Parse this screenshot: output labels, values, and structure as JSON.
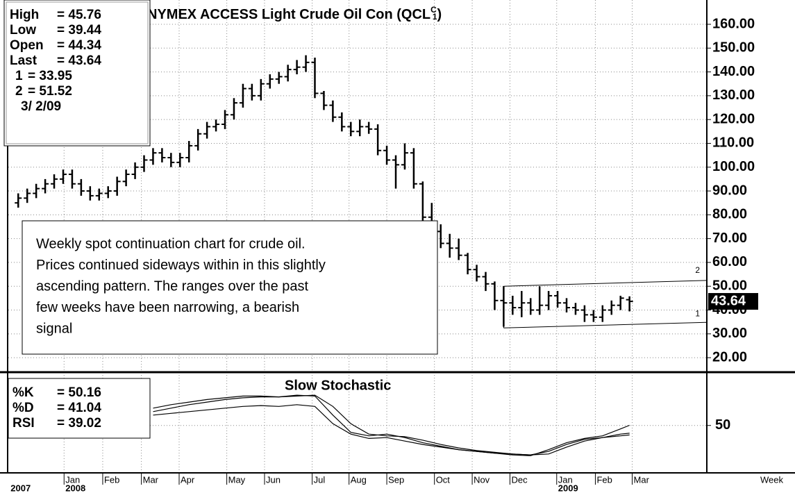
{
  "chart_data": [
    {
      "type": "ohlc",
      "title_parts": [
        "NYMEX ACCESS Light Crude Oil Con (QCL",
        "C",
        "1",
        ")"
      ],
      "readout": [
        {
          "label": "High",
          "value": "= 45.76"
        },
        {
          "label": "Low",
          "value": "= 39.44"
        },
        {
          "label": "Open",
          "value": "= 44.34"
        },
        {
          "label": "Last",
          "value": "= 43.64"
        },
        {
          "label": "1",
          "value": "= 33.95"
        },
        {
          "label": "2",
          "value": "= 51.52"
        }
      ],
      "date": "3/ 2/09",
      "annotation": [
        "Weekly spot continuation chart for crude oil.",
        "Prices continued sideways within in this slightly",
        "ascending pattern. The ranges over the past",
        "few weeks have been narrowing, a bearish",
        "signal"
      ],
      "open": [
        85,
        87,
        89,
        91,
        93,
        95,
        97,
        93,
        90,
        88,
        89,
        90,
        94,
        97,
        100,
        103,
        106,
        104,
        102,
        104,
        109,
        114,
        117,
        118,
        122,
        127,
        133,
        130,
        135,
        137,
        138,
        141,
        142,
        144,
        131,
        126,
        121,
        117,
        115,
        117,
        116,
        107,
        103,
        101,
        106,
        93,
        79,
        73,
        68,
        66,
        63,
        57,
        54,
        51,
        44,
        43,
        41,
        43,
        40,
        42,
        46,
        43,
        41,
        40,
        38,
        37,
        40,
        42,
        44.34
      ],
      "high": [
        89,
        91,
        93,
        95,
        97,
        99,
        99,
        95,
        92,
        91,
        92,
        96,
        99,
        102,
        105,
        108,
        108,
        106,
        106,
        111,
        116,
        119,
        120,
        124,
        129,
        135,
        135,
        137,
        139,
        140,
        143,
        145,
        147,
        146,
        132,
        128,
        123,
        119,
        120,
        119,
        118,
        109,
        105,
        110,
        108,
        94,
        85,
        76,
        72,
        70,
        64,
        59,
        56,
        52,
        50,
        46,
        48,
        45,
        50,
        48,
        48,
        45,
        43,
        42,
        40,
        42,
        44,
        46,
        45.76
      ],
      "low": [
        83,
        85,
        87,
        89,
        91,
        93,
        91,
        88,
        86,
        86,
        87,
        88,
        92,
        95,
        98,
        101,
        102,
        100,
        100,
        102,
        107,
        112,
        115,
        116,
        120,
        125,
        128,
        128,
        133,
        135,
        136,
        139,
        140,
        129,
        124,
        119,
        115,
        113,
        113,
        114,
        105,
        101,
        91,
        99,
        91,
        77,
        71,
        66,
        62,
        61,
        55,
        52,
        48,
        40,
        33,
        38,
        37,
        38,
        38,
        40,
        41,
        39,
        38,
        35,
        35,
        35,
        38,
        40,
        39.44
      ],
      "close": [
        87,
        89,
        91,
        93,
        95,
        97,
        93,
        90,
        88,
        89,
        90,
        94,
        97,
        100,
        103,
        106,
        104,
        102,
        104,
        109,
        114,
        117,
        118,
        122,
        127,
        133,
        130,
        135,
        137,
        138,
        141,
        142,
        144,
        131,
        126,
        121,
        117,
        115,
        117,
        116,
        107,
        103,
        101,
        106,
        93,
        79,
        73,
        68,
        66,
        63,
        57,
        54,
        51,
        44,
        43,
        41,
        43,
        40,
        42,
        46,
        43,
        41,
        40,
        38,
        37,
        40,
        42,
        45,
        43.64
      ],
      "color": "#000000",
      "trendlines": [
        {
          "name": "1",
          "x": [
            54,
            68
          ],
          "values": [
            32.5,
            33.95
          ]
        },
        {
          "name": "2",
          "x": [
            54,
            68
          ],
          "values": [
            50,
            51.52
          ]
        }
      ],
      "xlim": [
        -1.1,
        76.6
      ],
      "ylim": [
        14.2,
        170.2
      ],
      "yticks": [
        {
          "value": 20,
          "label": "20.00"
        },
        {
          "value": 30,
          "label": "30.00"
        },
        {
          "value": 40,
          "label": "40.00"
        },
        {
          "value": 50,
          "label": "50.00"
        },
        {
          "value": 60,
          "label": "60.00"
        },
        {
          "value": 70,
          "label": "70.00"
        },
        {
          "value": 80,
          "label": "80.00"
        },
        {
          "value": 90,
          "label": "90.00"
        },
        {
          "value": 100,
          "label": "100.00"
        },
        {
          "value": 110,
          "label": "110.00"
        },
        {
          "value": 120,
          "label": "120.00"
        },
        {
          "value": 130,
          "label": "130.00"
        },
        {
          "value": 140,
          "label": "140.00"
        },
        {
          "value": 150,
          "label": "150.00"
        },
        {
          "value": 160,
          "label": "160.00"
        }
      ],
      "xticks": [
        {
          "value": 5.1,
          "label": "Jan"
        },
        {
          "value": 9.4,
          "label": "Feb"
        },
        {
          "value": 13.7,
          "label": "Mar"
        },
        {
          "value": 17.9,
          "label": "Apr"
        },
        {
          "value": 23.2,
          "label": "May"
        },
        {
          "value": 27.4,
          "label": "Jun"
        },
        {
          "value": 32.7,
          "label": "Jul"
        },
        {
          "value": 36.8,
          "label": "Aug"
        },
        {
          "value": 41,
          "label": "Sep"
        },
        {
          "value": 46.3,
          "label": "Oct"
        },
        {
          "value": 50.5,
          "label": "Nov"
        },
        {
          "value": 54.7,
          "label": "Dec"
        },
        {
          "value": 59.9,
          "label": "Jan"
        },
        {
          "value": 64.2,
          "label": "Feb"
        },
        {
          "value": 68.3,
          "label": "Mar"
        }
      ],
      "year_labels": [
        {
          "value": -1,
          "label": "2007"
        },
        {
          "value": 5.1,
          "label": "2008"
        },
        {
          "value": 59.9,
          "label": "2009"
        }
      ],
      "x_unit": "Week",
      "grid": true
    },
    {
      "type": "line",
      "title": "Slow Stochastic",
      "x": [
        15,
        17,
        19,
        21,
        23,
        25,
        27,
        29,
        31,
        33,
        35,
        37,
        39,
        41,
        43,
        45,
        47,
        49,
        51,
        53,
        55,
        57,
        59,
        61,
        63,
        65,
        67,
        68
      ],
      "series": [
        {
          "name": "%K",
          "readout": "= 50.16",
          "color": "#000000",
          "values": [
            70,
            74,
            77,
            80,
            82,
            84,
            84,
            83,
            85,
            84,
            62,
            42,
            38,
            40,
            36,
            30,
            26,
            22,
            20,
            18,
            16,
            15,
            22,
            30,
            35,
            38,
            46,
            50.16
          ]
        },
        {
          "name": "%D",
          "readout": "= 41.04",
          "color": "#000000",
          "values": [
            66,
            70,
            74,
            77,
            80,
            82,
            83,
            83,
            84,
            85,
            72,
            52,
            40,
            38,
            37,
            33,
            28,
            24,
            21,
            19,
            17,
            16,
            17,
            25,
            32,
            36,
            40,
            41.04
          ]
        },
        {
          "name": "RSI",
          "readout": "= 39.02",
          "color": "#000000",
          "values": [
            62,
            64,
            66,
            68,
            70,
            72,
            73,
            72,
            74,
            72,
            52,
            40,
            35,
            36,
            32,
            28,
            25,
            22,
            20,
            18,
            17,
            16,
            20,
            28,
            34,
            36,
            38,
            39.02
          ]
        }
      ],
      "xlim": [
        -1.1,
        76.6
      ],
      "ylim": [
        -4,
        110
      ],
      "yticks": [
        50
      ],
      "grid": true
    }
  ]
}
